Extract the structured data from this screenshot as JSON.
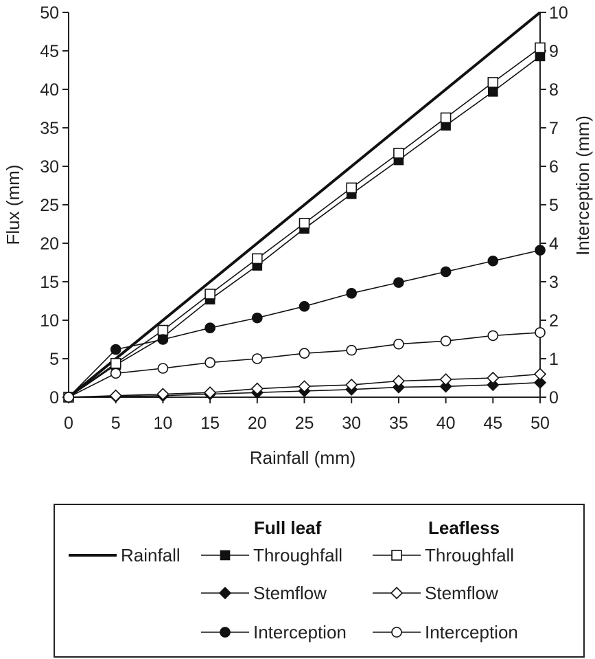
{
  "chart_data": {
    "type": "line",
    "xlabel": "Rainfall (mm)",
    "ylabel": "Flux (mm)",
    "y2label": "Interception (mm)",
    "xlim": [
      0,
      50
    ],
    "ylim": [
      0,
      50
    ],
    "y2lim": [
      0,
      10
    ],
    "x_ticks": [
      0,
      5,
      10,
      15,
      20,
      25,
      30,
      35,
      40,
      45,
      50
    ],
    "y_ticks": [
      0,
      5,
      10,
      15,
      20,
      25,
      30,
      35,
      40,
      45,
      50
    ],
    "y2_ticks": [
      0,
      1,
      2,
      3,
      4,
      5,
      6,
      7,
      8,
      9,
      10
    ],
    "grid": false,
    "legend": {
      "placement": "bottom",
      "group_headers": [
        "Full leaf",
        "Leafless"
      ]
    },
    "x": [
      0,
      5,
      10,
      15,
      20,
      25,
      30,
      35,
      40,
      45,
      50
    ],
    "series": [
      {
        "name": "Rainfall",
        "group": "",
        "axis": "left",
        "marker": "none",
        "values": [
          0,
          5,
          10,
          15,
          20,
          25,
          30,
          35,
          40,
          45,
          50
        ]
      },
      {
        "name": "Throughfall",
        "group": "Full leaf",
        "axis": "left",
        "marker": "square-filled",
        "values": [
          0,
          4.2,
          7.8,
          12.7,
          17.1,
          21.9,
          26.4,
          30.8,
          35.3,
          39.7,
          44.3
        ]
      },
      {
        "name": "Throughfall",
        "group": "Leafless",
        "axis": "left",
        "marker": "square-open",
        "values": [
          0,
          4.4,
          8.7,
          13.4,
          18.0,
          22.6,
          27.2,
          31.7,
          36.3,
          40.9,
          45.4
        ]
      },
      {
        "name": "Stemflow",
        "group": "Full leaf",
        "axis": "left",
        "marker": "diamond-filled",
        "values": [
          0,
          0.1,
          0.2,
          0.4,
          0.6,
          0.8,
          1.0,
          1.3,
          1.4,
          1.6,
          1.9
        ]
      },
      {
        "name": "Stemflow",
        "group": "Leafless",
        "axis": "left",
        "marker": "diamond-open",
        "values": [
          0,
          0.2,
          0.4,
          0.6,
          1.1,
          1.4,
          1.6,
          2.1,
          2.3,
          2.5,
          3.0
        ]
      },
      {
        "name": "Interception",
        "group": "Full leaf",
        "axis": "right",
        "marker": "circle-filled",
        "values": [
          0,
          1.24,
          1.5,
          1.8,
          2.06,
          2.36,
          2.7,
          2.98,
          3.26,
          3.54,
          3.82
        ]
      },
      {
        "name": "Interception",
        "group": "Leafless",
        "axis": "right",
        "marker": "circle-open",
        "values": [
          0,
          0.62,
          0.75,
          0.9,
          1.0,
          1.14,
          1.22,
          1.38,
          1.46,
          1.6,
          1.68
        ]
      }
    ]
  }
}
